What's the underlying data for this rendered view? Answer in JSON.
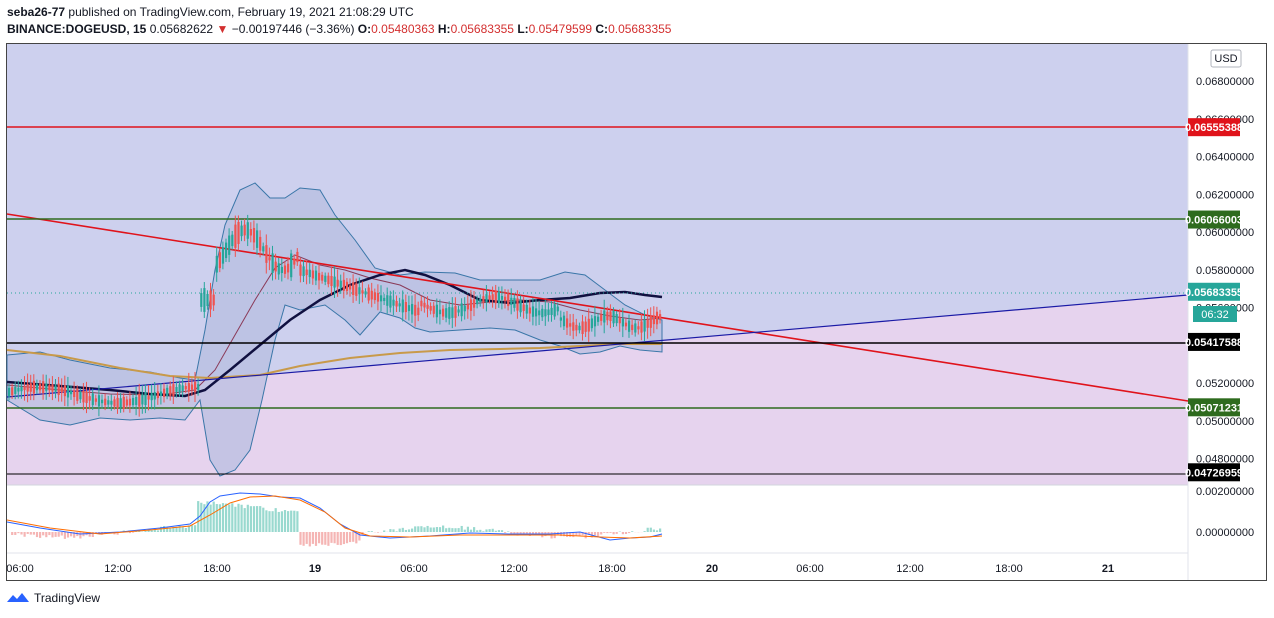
{
  "header": {
    "author": "seba26-77",
    "published_text": "published on TradingView.com, February 19, 2021 21:08:29 UTC",
    "symbol": "BINANCE:DOGEUSD, 15",
    "last_price": "0.05682622",
    "change_arrow": "▼",
    "change": "−0.00197446 (−3.36%)",
    "o_label": "O:",
    "o_value": "0.05480363",
    "h_label": "H:",
    "h_value": "0.05683355",
    "l_label": "L:",
    "l_value": "0.05479599",
    "c_label": "C:",
    "c_value": "0.05683355"
  },
  "price_axis": {
    "currency": "USD",
    "ticks": [
      "0.06800000",
      "0.06600000",
      "0.06400000",
      "0.06200000",
      "0.06000000",
      "0.05800000",
      "0.05600000",
      "0.05200000",
      "0.05000000",
      "0.04800000"
    ],
    "tick_values": [
      0.068,
      0.066,
      0.064,
      0.062,
      0.06,
      0.058,
      0.056,
      0.052,
      0.05,
      0.048
    ],
    "range": [
      0.0465,
      0.0697
    ]
  },
  "levels": [
    {
      "label": "0.06555388",
      "value": 0.06555388,
      "color": "#e0131b"
    },
    {
      "label": "0.06066003",
      "value": 0.06066003,
      "color": "#2e6b1e"
    },
    {
      "label": "0.05683355",
      "value": 0.05683355,
      "color": "#26a69a"
    },
    {
      "label": "0.05417588",
      "value": 0.05417588,
      "color": "#000000"
    },
    {
      "label": "0.05071231",
      "value": 0.05071231,
      "color": "#2e6b1e"
    },
    {
      "label": "0.04726959",
      "value": 0.04726959,
      "color": "#000000"
    }
  ],
  "countdown": "06:32",
  "macd_axis": {
    "ticks": [
      "0.00200000",
      "0.00000000"
    ],
    "tick_values": [
      0.002,
      0.0
    ]
  },
  "time_axis": {
    "labels": [
      "06:00",
      "12:00",
      "18:00",
      "19",
      "06:00",
      "12:00",
      "18:00",
      "20",
      "06:00",
      "12:00",
      "18:00",
      "21"
    ]
  },
  "colors": {
    "up": "#26a69a",
    "down": "#ef5350",
    "zone_upper": "#cdd0ee",
    "zone_lower": "#e6d3ee",
    "trend_red": "#e0131b",
    "trend_blue": "#1a1aa6"
  },
  "footer": {
    "brand": "TradingView"
  }
}
